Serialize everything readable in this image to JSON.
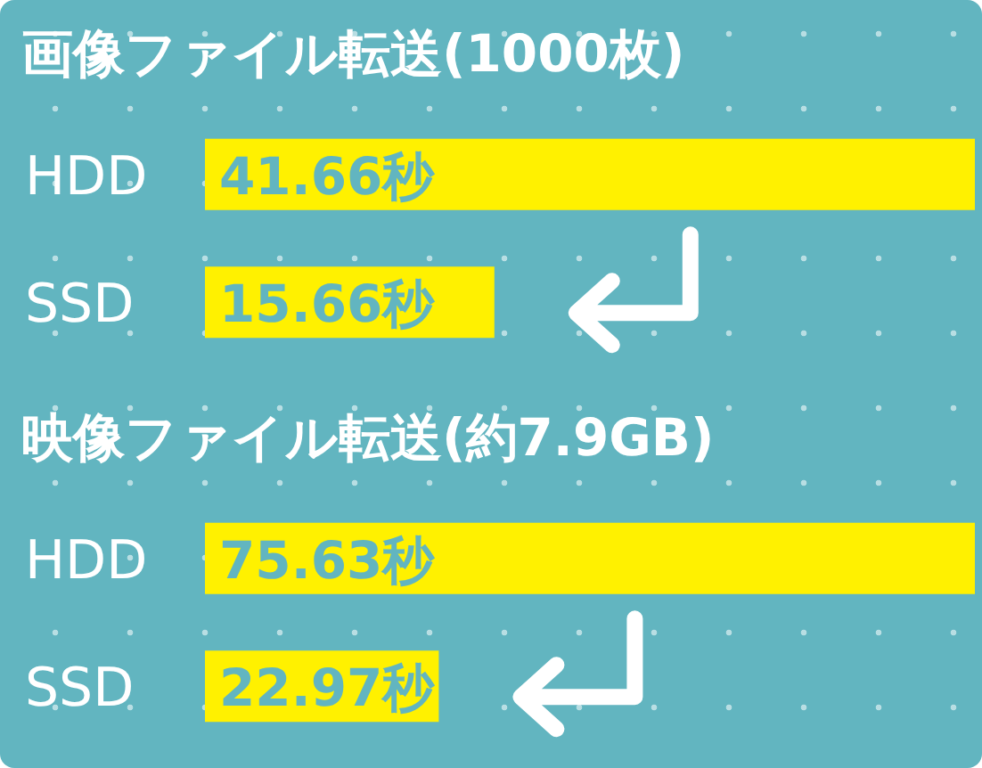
{
  "chart_data": [
    {
      "type": "bar",
      "orientation": "horizontal",
      "title": "画像ファイル転送(1000枚)",
      "categories": [
        "HDD",
        "SSD"
      ],
      "values": [
        41.66,
        15.66
      ],
      "value_labels": [
        "41.66秒",
        "15.66秒"
      ],
      "color": "#fff100"
    },
    {
      "type": "bar",
      "orientation": "horizontal",
      "title": "映像ファイル転送(約7.9GB)",
      "categories": [
        "HDD",
        "SSD"
      ],
      "values": [
        75.63,
        22.97
      ],
      "value_labels": [
        "75.63秒",
        "22.97秒"
      ],
      "color": "#fff100"
    }
  ]
}
